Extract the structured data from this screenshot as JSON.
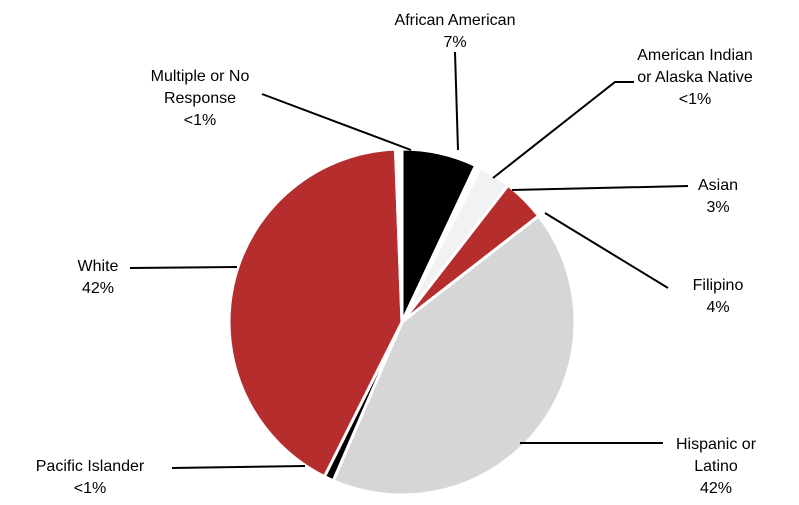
{
  "chart_data": {
    "type": "pie",
    "title": "",
    "slices": [
      {
        "label_lines": [
          "African American"
        ],
        "pct_label": "7%",
        "value": 7,
        "color": "#000000"
      },
      {
        "label_lines": [
          "American Indian",
          "or Alaska Native"
        ],
        "pct_label": "<1%",
        "value": 0.5,
        "color": "#ffffff"
      },
      {
        "label_lines": [
          "Asian"
        ],
        "pct_label": "3%",
        "value": 3,
        "color": "#f2f2f2"
      },
      {
        "label_lines": [
          "Filipino"
        ],
        "pct_label": "4%",
        "value": 4,
        "color": "#b52d2d"
      },
      {
        "label_lines": [
          "Hispanic or",
          "Latino"
        ],
        "pct_label": "42%",
        "value": 42,
        "color": "#d6d6d6"
      },
      {
        "label_lines": [
          "Pacific Islander"
        ],
        "pct_label": "<1%",
        "value": 0.9,
        "color": "#000000"
      },
      {
        "label_lines": [
          "White"
        ],
        "pct_label": "42%",
        "value": 42,
        "color": "#b52d2d"
      },
      {
        "label_lines": [
          "Multiple or No",
          "Response"
        ],
        "pct_label": "<1%",
        "value": 0.6,
        "color": "#ffffff"
      }
    ],
    "start_angle_deg": 0,
    "direction": "clockwise",
    "legend": "none",
    "data_labels": "outside-with-leader-lines"
  }
}
